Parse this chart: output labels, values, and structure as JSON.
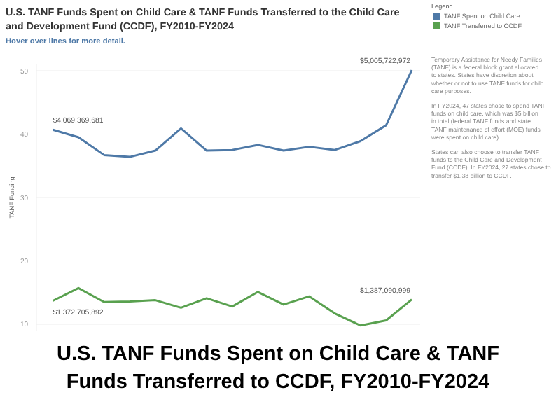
{
  "chart_data": {
    "type": "line",
    "title": "U.S. TANF Funds Spent on Child Care & TANF Funds Transferred to the Child Care and Development Fund (CCDF), FY2010-FY2024",
    "subtitle": "Hover over lines for more detail.",
    "ylabel": "TANF Funding",
    "legend_title": "Legend",
    "categories": [
      null,
      null,
      null,
      null,
      null,
      null,
      null,
      null,
      null,
      null,
      null,
      null,
      null,
      null,
      null
    ],
    "series": [
      {
        "name": "TANF Spent on Child Care",
        "color": "#4e79a7",
        "values": [
          40.7,
          39.5,
          36.7,
          36.4,
          37.4,
          40.9,
          37.4,
          37.5,
          38.3,
          37.4,
          38.0,
          37.5,
          38.9,
          41.4,
          50.1
        ]
      },
      {
        "name": "TANF Transferred to CCDF",
        "color": "#59a14f",
        "values": [
          13.7,
          15.7,
          13.5,
          13.6,
          13.8,
          12.6,
          14.1,
          12.8,
          15.1,
          13.1,
          14.4,
          11.7,
          9.8,
          10.6,
          13.9
        ]
      }
    ],
    "ylim": [
      9,
      51
    ],
    "yticks": [
      10,
      20,
      30,
      40,
      50
    ],
    "grid": "y",
    "legend": "top right",
    "annotations": [
      "$4,069,369,681",
      "$5,005,722,972",
      "$1,372,705,892",
      "$1,387,090,999",
      "Temporary Assistance for Needy Families (TANF) is a federal block grant allocated to states. States have discretion about whether or not to use TANF funds for child care purposes.",
      "In FY2024, 47 states chose to spend TANF funds on child care, which was $5 billion in total (federal TANF funds and state TANF maintenance of effort (MOE) funds were spent on child care).",
      "States can also choose to transfer TANF funds to the Child Care and Development Fund (CCDF). In FY2024, 27 states chose to transfer $1.38 billion to CCDF.",
      "U.S. TANF Funds Spent on Child Care & TANF Funds Transferred to CCDF, FY2010-FY2024"
    ]
  }
}
